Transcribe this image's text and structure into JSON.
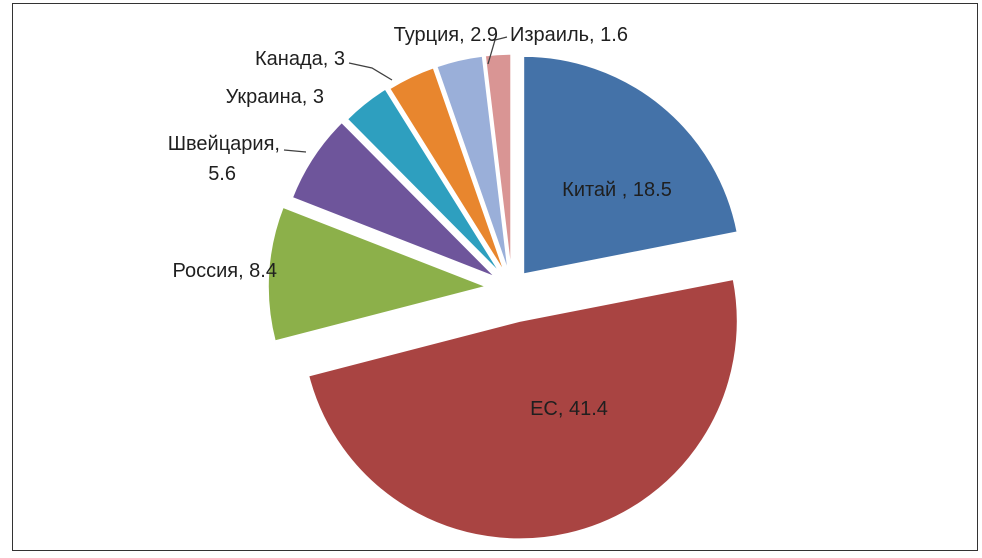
{
  "chart_data": {
    "type": "pie",
    "title": "",
    "exploded": true,
    "legend": "none",
    "slices": [
      {
        "label": "Китай",
        "value": 18.5,
        "display": "Китай , 18.5",
        "color": "#4472A8"
      },
      {
        "label": "ЕС",
        "value": 41.4,
        "display": "ЕС, 41.4",
        "color": "#A94442"
      },
      {
        "label": "Россия",
        "value": 8.4,
        "display": "Россия, 8.4",
        "color": "#8CB04A"
      },
      {
        "label": "Швейцария",
        "value": 5.6,
        "display": [
          "Швейцария,",
          "5.6"
        ],
        "color": "#6E559B"
      },
      {
        "label": "Украина",
        "value": 3,
        "display": "Украина, 3",
        "color": "#2E9FBF"
      },
      {
        "label": "Канада",
        "value": 3,
        "display": "Канада, 3",
        "color": "#E8862E"
      },
      {
        "label": "Турция",
        "value": 2.9,
        "display": "Турция, 2.9",
        "color": "#9AAFD9"
      },
      {
        "label": "Израиль",
        "value": 1.6,
        "display": "Израиль, 1.6",
        "color": "#D99594"
      }
    ]
  }
}
